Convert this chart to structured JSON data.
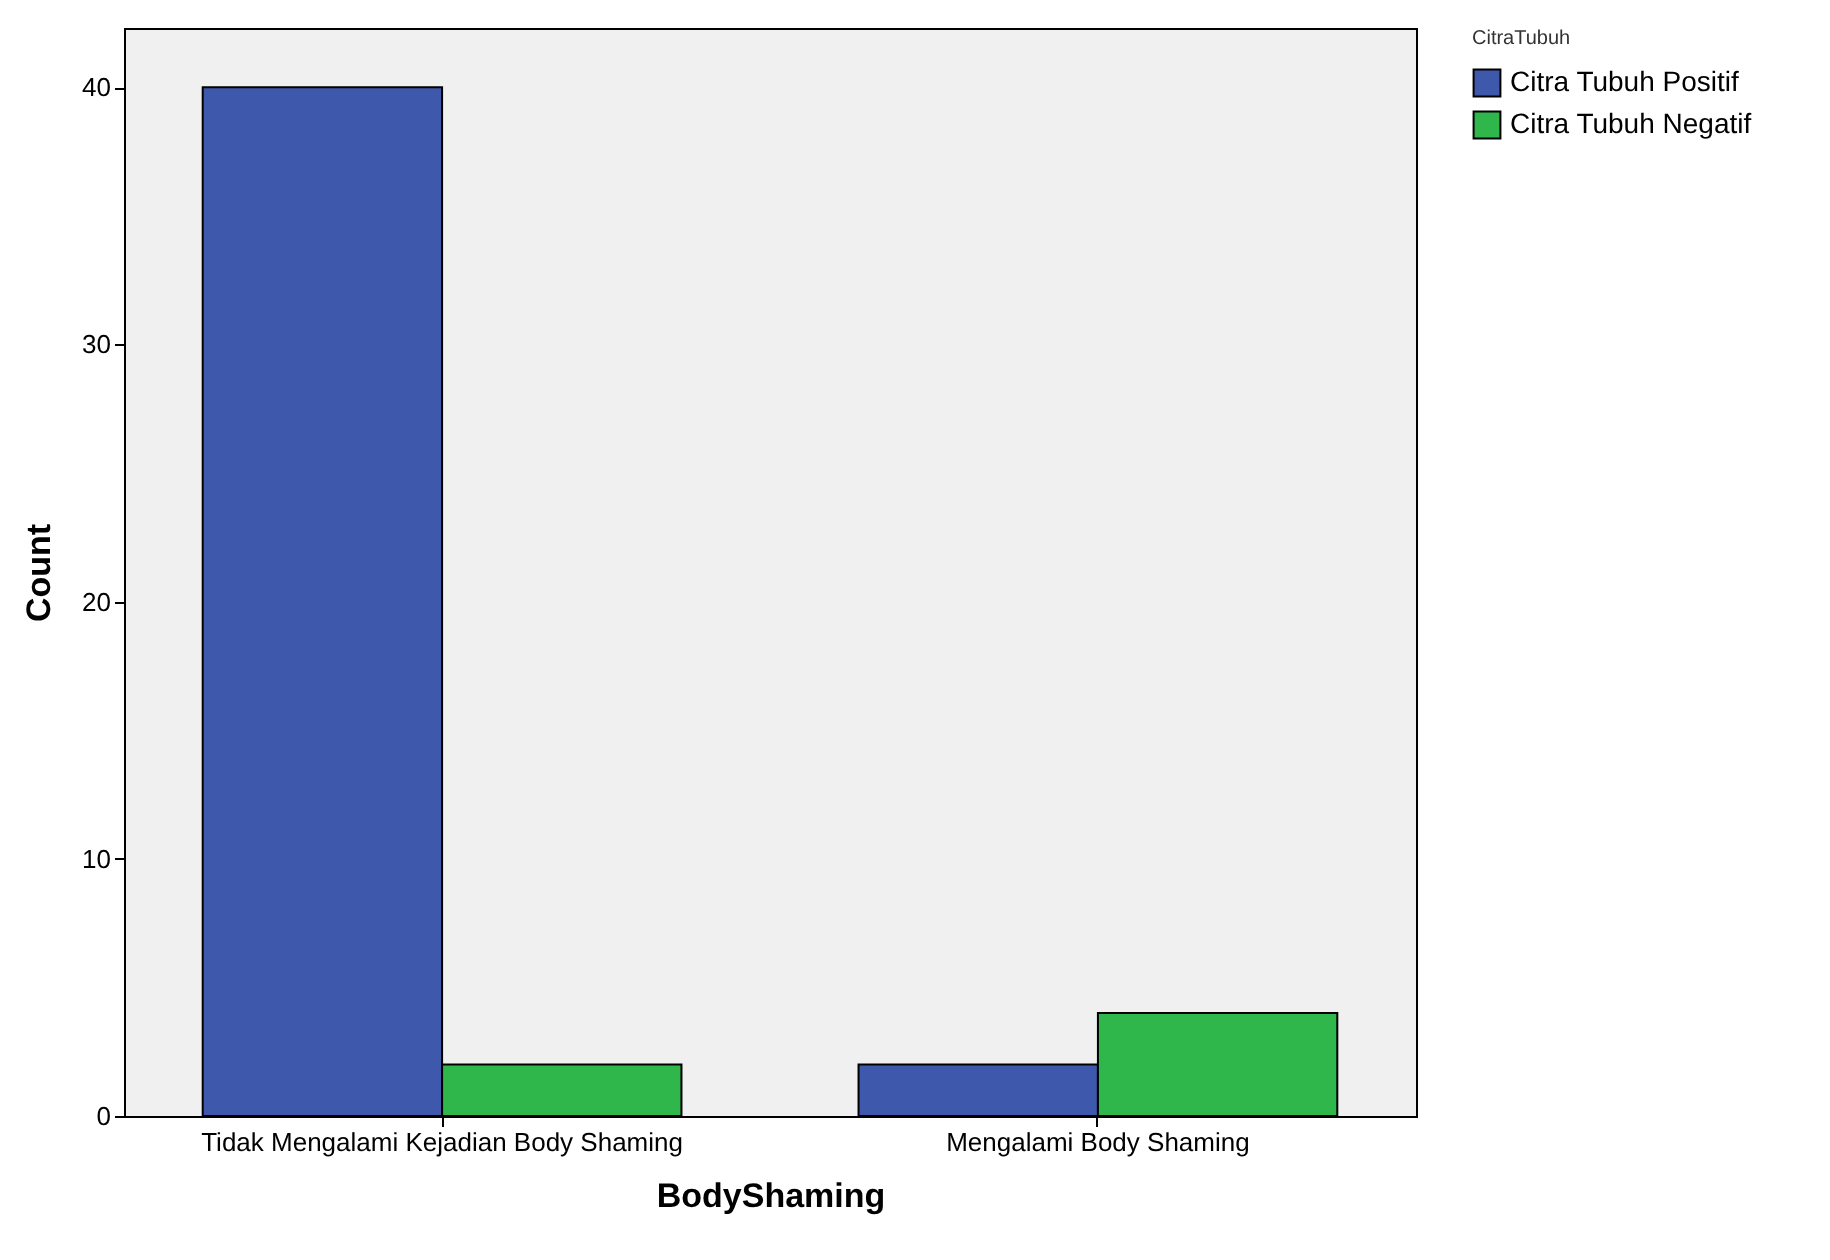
{
  "chart_data": {
    "type": "bar",
    "xlabel": "BodyShaming",
    "ylabel": "Count",
    "legend_title": "CitraTubuh",
    "categories": [
      "Tidak Mengalami Kejadian Body Shaming",
      "Mengalami Body Shaming"
    ],
    "series": [
      {
        "name": "Citra Tubuh Positif",
        "color": "#3e58ac",
        "values": [
          40,
          2
        ]
      },
      {
        "name": "Citra Tubuh Negatif",
        "color": "#2fb74b",
        "values": [
          2,
          4
        ]
      }
    ],
    "ylim": [
      0,
      42.3
    ],
    "yticks": [
      0,
      10,
      20,
      30,
      40
    ],
    "grid": false,
    "legend": "top right"
  }
}
